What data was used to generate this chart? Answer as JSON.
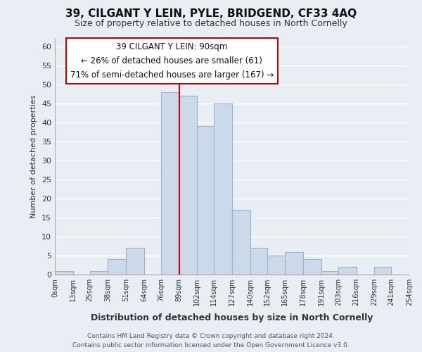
{
  "title": "39, CILGANT Y LEIN, PYLE, BRIDGEND, CF33 4AQ",
  "subtitle": "Size of property relative to detached houses in North Cornelly",
  "xlabel": "Distribution of detached houses by size in North Cornelly",
  "ylabel": "Number of detached properties",
  "bar_color": "#ccd9e8",
  "bar_edge_color": "#9ab3cc",
  "bin_edges": [
    0,
    13,
    25,
    38,
    51,
    64,
    76,
    89,
    102,
    114,
    127,
    140,
    152,
    165,
    178,
    191,
    203,
    216,
    229,
    241,
    254
  ],
  "bin_labels": [
    "0sqm",
    "13sqm",
    "25sqm",
    "38sqm",
    "51sqm",
    "64sqm",
    "76sqm",
    "89sqm",
    "102sqm",
    "114sqm",
    "127sqm",
    "140sqm",
    "152sqm",
    "165sqm",
    "178sqm",
    "191sqm",
    "203sqm",
    "216sqm",
    "229sqm",
    "241sqm",
    "254sqm"
  ],
  "counts": [
    1,
    0,
    1,
    4,
    7,
    0,
    48,
    47,
    39,
    45,
    17,
    7,
    5,
    6,
    4,
    1,
    2,
    0,
    2,
    0
  ],
  "ylim": [
    0,
    62
  ],
  "yticks": [
    0,
    5,
    10,
    15,
    20,
    25,
    30,
    35,
    40,
    45,
    50,
    55,
    60
  ],
  "vline_x": 89,
  "vline_color": "#cc0000",
  "annotation_line1": "39 CILGANT Y LEIN: 90sqm",
  "annotation_line2": "← 26% of detached houses are smaller (61)",
  "annotation_line3": "71% of semi-detached houses are larger (167) →",
  "annotation_box_color": "#ffffff",
  "annotation_box_edge": "#cc0000",
  "footer_line1": "Contains HM Land Registry data © Crown copyright and database right 2024.",
  "footer_line2": "Contains public sector information licensed under the Open Government Licence v3.0.",
  "background_color": "#e8eef4",
  "grid_color": "#ffffff"
}
